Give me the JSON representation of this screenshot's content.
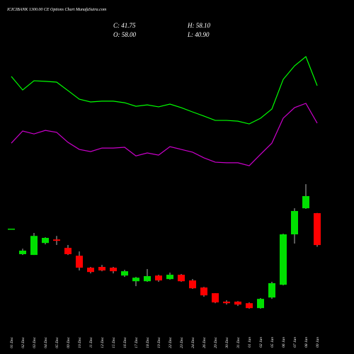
{
  "chart_data": {
    "type": "candlestick",
    "title": "ICICIBANK 1300.00 CE Options Chart MunafaSutra.com",
    "ohlc_labels": {
      "close": "C: 41.75",
      "high": "H: 58.10",
      "open": "O: 58.00",
      "low": "L: 40.90"
    },
    "categories": [
      "01 Dec",
      "02 Dec",
      "03 Dec",
      "04 Dec",
      "05 Dec",
      "09 Dec",
      "10 Dec",
      "11 Dec",
      "12 Dec",
      "15 Dec",
      "16 Dec",
      "17 Dec",
      "18 Dec",
      "19 Dec",
      "22 Dec",
      "23 Dec",
      "24 Dec",
      "26 Dec",
      "29 Dec",
      "30 Dec",
      "31 Dec",
      "01 Jan",
      "02 Jan",
      "05 Jan",
      "06 Jan",
      "07 Jan",
      "08 Jan",
      "09 Jan"
    ],
    "open": [
      50.1,
      37.1,
      36.7,
      42.8,
      44.6,
      40.3,
      36.3,
      30.2,
      30.6,
      30.2,
      26.2,
      23.3,
      23.3,
      26.2,
      24.4,
      26.6,
      23.7,
      20.1,
      17.2,
      12.9,
      12.9,
      12.1,
      9.6,
      15.0,
      21.5,
      47.2,
      60.5,
      58.0
    ],
    "high": [
      50.1,
      39.9,
      47.9,
      45.7,
      46.4,
      41.8,
      38.5,
      30.6,
      31.6,
      30.6,
      29.1,
      25.5,
      29.5,
      26.6,
      27.7,
      27.0,
      24.4,
      20.4,
      17.2,
      13.6,
      13.2,
      12.5,
      14.7,
      23.0,
      47.5,
      60.5,
      72.8,
      58.1
    ],
    "low": [
      50.1,
      36.7,
      36.7,
      42.1,
      41.8,
      36.7,
      28.8,
      27.3,
      28.4,
      27.3,
      25.5,
      20.8,
      23.0,
      23.0,
      24.1,
      23.0,
      19.4,
      15.4,
      12.1,
      11.4,
      10.7,
      9.3,
      9.3,
      14.3,
      21.2,
      42.5,
      60.2,
      40.9
    ],
    "close": [
      50.1,
      38.9,
      46.4,
      45.4,
      43.9,
      37.1,
      30.2,
      28.0,
      28.8,
      28.4,
      28.4,
      25.1,
      25.9,
      23.7,
      26.6,
      23.3,
      19.7,
      16.1,
      12.5,
      12.1,
      11.4,
      9.6,
      14.3,
      22.3,
      47.2,
      59.1,
      66.7,
      41.75
    ],
    "up_color": "#00e000",
    "down_color": "#ff0000",
    "wick_color": "#ffffff",
    "lines": [
      {
        "color": "#00ff00",
        "values": [
          127.7,
          120.8,
          125.5,
          125.2,
          124.8,
          120.5,
          116.1,
          114.7,
          115.1,
          115.1,
          114.3,
          112.5,
          113.2,
          112.2,
          113.6,
          111.8,
          109.6,
          107.5,
          105.3,
          105.3,
          104.9,
          103.5,
          106.4,
          111.1,
          126.2,
          133.1,
          137.8,
          123.0
        ]
      },
      {
        "color": "#cc00cc",
        "values": [
          93.7,
          99.9,
          98.4,
          100.2,
          99.2,
          94.1,
          90.5,
          89.4,
          91.2,
          91.2,
          91.6,
          87.2,
          88.7,
          87.6,
          91.9,
          90.5,
          89.1,
          86.2,
          84.0,
          83.7,
          83.7,
          82.2,
          88.0,
          93.7,
          106.4,
          111.8,
          114.0,
          103.9
        ]
      }
    ]
  }
}
